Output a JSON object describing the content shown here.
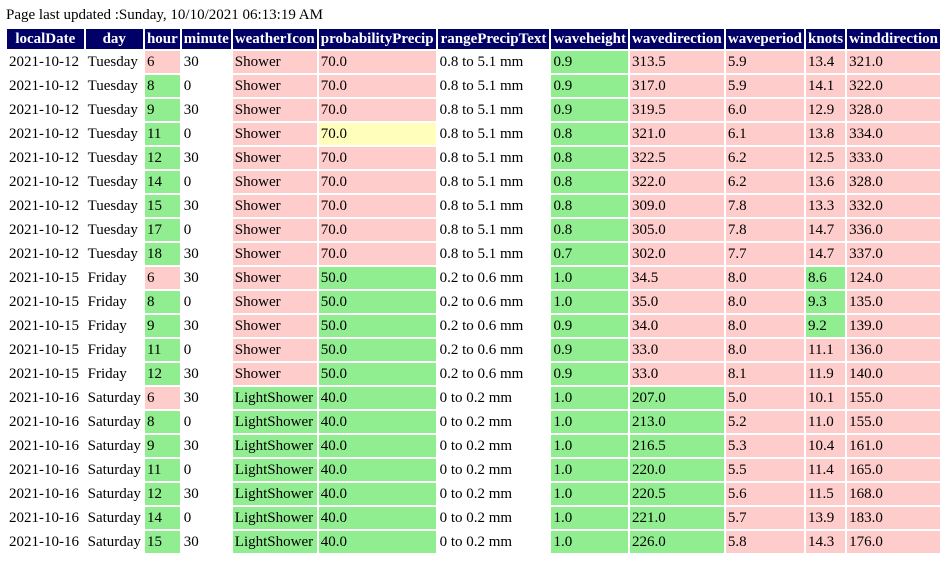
{
  "page_updated": "Page last updated :Sunday, 10/10/2021 06:13:19 AM",
  "colors": {
    "header_bg": "#000066",
    "bad": "#ffcccc",
    "good": "#90ee90",
    "warn": "#ffffbb"
  },
  "columns": [
    "localDate",
    "day",
    "hour",
    "minute",
    "weatherIcon",
    "probabilityPrecip",
    "rangePrecipText",
    "waveheight",
    "wavedirection",
    "waveperiod",
    "knots",
    "winddirection"
  ],
  "rows": [
    [
      "2021-10-12",
      "Tuesday",
      "6",
      "30",
      "Shower",
      "70.0",
      "0.8 to 5.1 mm",
      "0.9",
      "313.5",
      "5.9",
      "13.4",
      "321.0"
    ],
    [
      "2021-10-12",
      "Tuesday",
      "8",
      "0",
      "Shower",
      "70.0",
      "0.8 to 5.1 mm",
      "0.9",
      "317.0",
      "5.9",
      "14.1",
      "322.0"
    ],
    [
      "2021-10-12",
      "Tuesday",
      "9",
      "30",
      "Shower",
      "70.0",
      "0.8 to 5.1 mm",
      "0.9",
      "319.5",
      "6.0",
      "12.9",
      "328.0"
    ],
    [
      "2021-10-12",
      "Tuesday",
      "11",
      "0",
      "Shower",
      "70.0",
      "0.8 to 5.1 mm",
      "0.8",
      "321.0",
      "6.1",
      "13.8",
      "334.0"
    ],
    [
      "2021-10-12",
      "Tuesday",
      "12",
      "30",
      "Shower",
      "70.0",
      "0.8 to 5.1 mm",
      "0.8",
      "322.5",
      "6.2",
      "12.5",
      "333.0"
    ],
    [
      "2021-10-12",
      "Tuesday",
      "14",
      "0",
      "Shower",
      "70.0",
      "0.8 to 5.1 mm",
      "0.8",
      "322.0",
      "6.2",
      "13.6",
      "328.0"
    ],
    [
      "2021-10-12",
      "Tuesday",
      "15",
      "30",
      "Shower",
      "70.0",
      "0.8 to 5.1 mm",
      "0.8",
      "309.0",
      "7.8",
      "13.3",
      "332.0"
    ],
    [
      "2021-10-12",
      "Tuesday",
      "17",
      "0",
      "Shower",
      "70.0",
      "0.8 to 5.1 mm",
      "0.8",
      "305.0",
      "7.8",
      "14.7",
      "336.0"
    ],
    [
      "2021-10-12",
      "Tuesday",
      "18",
      "30",
      "Shower",
      "70.0",
      "0.8 to 5.1 mm",
      "0.7",
      "302.0",
      "7.7",
      "14.7",
      "337.0"
    ],
    [
      "2021-10-15",
      "Friday",
      "6",
      "30",
      "Shower",
      "50.0",
      "0.2 to 0.6 mm",
      "1.0",
      "34.5",
      "8.0",
      "8.6",
      "124.0"
    ],
    [
      "2021-10-15",
      "Friday",
      "8",
      "0",
      "Shower",
      "50.0",
      "0.2 to 0.6 mm",
      "1.0",
      "35.0",
      "8.0",
      "9.3",
      "135.0"
    ],
    [
      "2021-10-15",
      "Friday",
      "9",
      "30",
      "Shower",
      "50.0",
      "0.2 to 0.6 mm",
      "0.9",
      "34.0",
      "8.0",
      "9.2",
      "139.0"
    ],
    [
      "2021-10-15",
      "Friday",
      "11",
      "0",
      "Shower",
      "50.0",
      "0.2 to 0.6 mm",
      "0.9",
      "33.0",
      "8.0",
      "11.1",
      "136.0"
    ],
    [
      "2021-10-15",
      "Friday",
      "12",
      "30",
      "Shower",
      "50.0",
      "0.2 to 0.6 mm",
      "0.9",
      "33.0",
      "8.1",
      "11.9",
      "140.0"
    ],
    [
      "2021-10-16",
      "Saturday",
      "6",
      "30",
      "LightShower",
      "40.0",
      "0 to 0.2 mm",
      "1.0",
      "207.0",
      "5.0",
      "10.1",
      "155.0"
    ],
    [
      "2021-10-16",
      "Saturday",
      "8",
      "0",
      "LightShower",
      "40.0",
      "0 to 0.2 mm",
      "1.0",
      "213.0",
      "5.2",
      "11.0",
      "155.0"
    ],
    [
      "2021-10-16",
      "Saturday",
      "9",
      "30",
      "LightShower",
      "40.0",
      "0 to 0.2 mm",
      "1.0",
      "216.5",
      "5.3",
      "10.4",
      "161.0"
    ],
    [
      "2021-10-16",
      "Saturday",
      "11",
      "0",
      "LightShower",
      "40.0",
      "0 to 0.2 mm",
      "1.0",
      "220.0",
      "5.5",
      "11.4",
      "165.0"
    ],
    [
      "2021-10-16",
      "Saturday",
      "12",
      "30",
      "LightShower",
      "40.0",
      "0 to 0.2 mm",
      "1.0",
      "220.5",
      "5.6",
      "11.5",
      "168.0"
    ],
    [
      "2021-10-16",
      "Saturday",
      "14",
      "0",
      "LightShower",
      "40.0",
      "0 to 0.2 mm",
      "1.0",
      "221.0",
      "5.7",
      "13.9",
      "183.0"
    ],
    [
      "2021-10-16",
      "Saturday",
      "15",
      "30",
      "LightShower",
      "40.0",
      "0 to 0.2 mm",
      "1.0",
      "226.0",
      "5.8",
      "14.3",
      "176.0"
    ]
  ],
  "cell_status": [
    [
      "",
      "",
      "r",
      "",
      "r",
      "r",
      "",
      "g",
      "r",
      "r",
      "r",
      "r"
    ],
    [
      "",
      "",
      "g",
      "",
      "r",
      "r",
      "",
      "g",
      "r",
      "r",
      "r",
      "r"
    ],
    [
      "",
      "",
      "g",
      "",
      "r",
      "r",
      "",
      "g",
      "r",
      "r",
      "r",
      "r"
    ],
    [
      "",
      "",
      "g",
      "",
      "r",
      "y",
      "",
      "g",
      "r",
      "r",
      "r",
      "r"
    ],
    [
      "",
      "",
      "g",
      "",
      "r",
      "r",
      "",
      "g",
      "r",
      "r",
      "r",
      "r"
    ],
    [
      "",
      "",
      "g",
      "",
      "r",
      "r",
      "",
      "g",
      "r",
      "r",
      "r",
      "r"
    ],
    [
      "",
      "",
      "g",
      "",
      "r",
      "r",
      "",
      "g",
      "r",
      "r",
      "r",
      "r"
    ],
    [
      "",
      "",
      "g",
      "",
      "r",
      "r",
      "",
      "g",
      "r",
      "r",
      "r",
      "r"
    ],
    [
      "",
      "",
      "g",
      "",
      "r",
      "r",
      "",
      "g",
      "r",
      "r",
      "r",
      "r"
    ],
    [
      "",
      "",
      "r",
      "",
      "r",
      "g",
      "",
      "g",
      "r",
      "r",
      "g",
      "r"
    ],
    [
      "",
      "",
      "g",
      "",
      "r",
      "g",
      "",
      "g",
      "r",
      "r",
      "g",
      "r"
    ],
    [
      "",
      "",
      "g",
      "",
      "r",
      "g",
      "",
      "g",
      "r",
      "r",
      "g",
      "r"
    ],
    [
      "",
      "",
      "g",
      "",
      "r",
      "g",
      "",
      "g",
      "r",
      "r",
      "r",
      "r"
    ],
    [
      "",
      "",
      "g",
      "",
      "r",
      "g",
      "",
      "g",
      "r",
      "r",
      "r",
      "r"
    ],
    [
      "",
      "",
      "r",
      "",
      "g",
      "g",
      "",
      "g",
      "g",
      "r",
      "r",
      "r"
    ],
    [
      "",
      "",
      "g",
      "",
      "g",
      "g",
      "",
      "g",
      "g",
      "r",
      "r",
      "r"
    ],
    [
      "",
      "",
      "g",
      "",
      "g",
      "g",
      "",
      "g",
      "g",
      "r",
      "r",
      "r"
    ],
    [
      "",
      "",
      "g",
      "",
      "g",
      "g",
      "",
      "g",
      "g",
      "r",
      "r",
      "r"
    ],
    [
      "",
      "",
      "g",
      "",
      "g",
      "g",
      "",
      "g",
      "g",
      "r",
      "r",
      "r"
    ],
    [
      "",
      "",
      "g",
      "",
      "g",
      "g",
      "",
      "g",
      "g",
      "r",
      "r",
      "r"
    ],
    [
      "",
      "",
      "g",
      "",
      "g",
      "g",
      "",
      "g",
      "g",
      "r",
      "r",
      "r"
    ]
  ]
}
